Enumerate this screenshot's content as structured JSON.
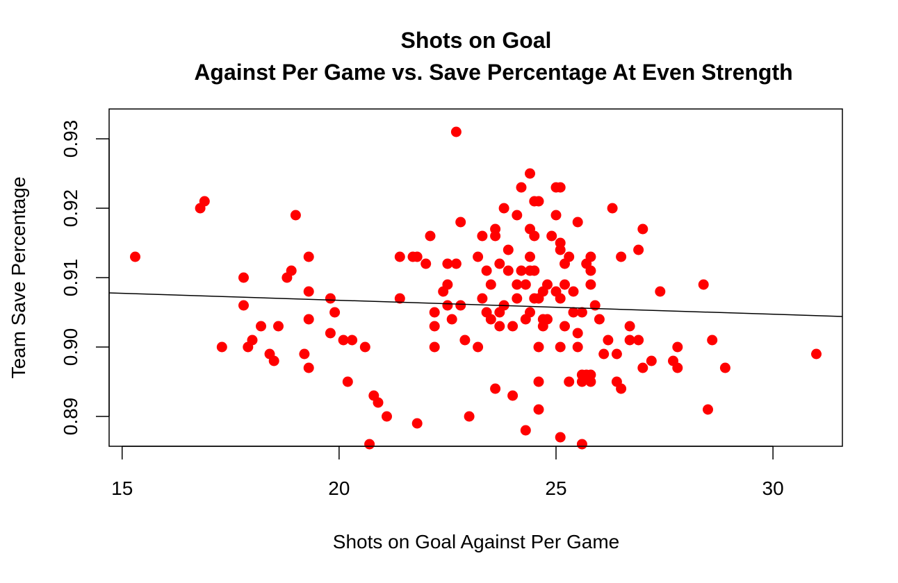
{
  "chart_data": {
    "type": "scatter",
    "title": "Shots on Goal",
    "subtitle": "Against Per Game vs. Save Percentage At Even Strength",
    "xlabel": "Shots on Goal Against Per Game",
    "ylabel": "Team Save Percentage",
    "xlim": [
      14.7,
      31.6
    ],
    "ylim": [
      0.8857,
      0.9343
    ],
    "xticks": [
      15,
      20,
      25,
      30
    ],
    "xtick_labels": [
      "15",
      "20",
      "25",
      "30"
    ],
    "yticks": [
      0.89,
      0.9,
      0.91,
      0.92,
      0.93
    ],
    "ytick_labels": [
      "0.89",
      "0.90",
      "0.91",
      "0.92",
      "0.93"
    ],
    "grid": false,
    "point_color": "#ff0000",
    "line_color": "#000000",
    "trendline": {
      "x": [
        14.7,
        31.6
      ],
      "y": [
        0.9078,
        0.9044
      ]
    },
    "points": [
      [
        15.3,
        0.913
      ],
      [
        16.8,
        0.92
      ],
      [
        16.9,
        0.921
      ],
      [
        17.3,
        0.9
      ],
      [
        17.8,
        0.91
      ],
      [
        17.8,
        0.906
      ],
      [
        17.9,
        0.9
      ],
      [
        18.0,
        0.901
      ],
      [
        18.2,
        0.903
      ],
      [
        18.4,
        0.899
      ],
      [
        18.5,
        0.898
      ],
      [
        18.6,
        0.903
      ],
      [
        18.8,
        0.91
      ],
      [
        18.9,
        0.911
      ],
      [
        19.0,
        0.919
      ],
      [
        19.2,
        0.899
      ],
      [
        19.3,
        0.897
      ],
      [
        19.3,
        0.913
      ],
      [
        19.3,
        0.908
      ],
      [
        19.3,
        0.904
      ],
      [
        19.8,
        0.907
      ],
      [
        19.8,
        0.902
      ],
      [
        19.9,
        0.905
      ],
      [
        20.1,
        0.901
      ],
      [
        20.2,
        0.895
      ],
      [
        20.3,
        0.901
      ],
      [
        20.6,
        0.9
      ],
      [
        20.7,
        0.886
      ],
      [
        20.8,
        0.893
      ],
      [
        20.9,
        0.892
      ],
      [
        21.1,
        0.89
      ],
      [
        21.4,
        0.907
      ],
      [
        21.4,
        0.913
      ],
      [
        21.7,
        0.913
      ],
      [
        21.8,
        0.913
      ],
      [
        21.8,
        0.889
      ],
      [
        22.0,
        0.912
      ],
      [
        22.1,
        0.916
      ],
      [
        22.2,
        0.905
      ],
      [
        22.2,
        0.903
      ],
      [
        22.2,
        0.9
      ],
      [
        22.4,
        0.908
      ],
      [
        22.5,
        0.912
      ],
      [
        22.5,
        0.909
      ],
      [
        22.5,
        0.906
      ],
      [
        22.6,
        0.904
      ],
      [
        22.7,
        0.931
      ],
      [
        22.7,
        0.912
      ],
      [
        22.8,
        0.918
      ],
      [
        22.8,
        0.906
      ],
      [
        22.9,
        0.901
      ],
      [
        23.0,
        0.89
      ],
      [
        23.2,
        0.9
      ],
      [
        23.2,
        0.913
      ],
      [
        23.3,
        0.916
      ],
      [
        23.3,
        0.907
      ],
      [
        23.4,
        0.911
      ],
      [
        23.4,
        0.905
      ],
      [
        23.5,
        0.904
      ],
      [
        23.5,
        0.909
      ],
      [
        23.6,
        0.917
      ],
      [
        23.6,
        0.916
      ],
      [
        23.6,
        0.894
      ],
      [
        23.7,
        0.912
      ],
      [
        23.7,
        0.905
      ],
      [
        23.7,
        0.903
      ],
      [
        23.8,
        0.92
      ],
      [
        23.8,
        0.906
      ],
      [
        23.9,
        0.914
      ],
      [
        23.9,
        0.911
      ],
      [
        24.0,
        0.903
      ],
      [
        24.0,
        0.893
      ],
      [
        24.1,
        0.919
      ],
      [
        24.1,
        0.909
      ],
      [
        24.1,
        0.907
      ],
      [
        24.2,
        0.911
      ],
      [
        24.2,
        0.923
      ],
      [
        24.3,
        0.904
      ],
      [
        24.3,
        0.909
      ],
      [
        24.3,
        0.888
      ],
      [
        24.4,
        0.925
      ],
      [
        24.4,
        0.917
      ],
      [
        24.4,
        0.911
      ],
      [
        24.4,
        0.913
      ],
      [
        24.4,
        0.905
      ],
      [
        24.5,
        0.921
      ],
      [
        24.5,
        0.916
      ],
      [
        24.5,
        0.911
      ],
      [
        24.5,
        0.907
      ],
      [
        24.6,
        0.921
      ],
      [
        24.6,
        0.907
      ],
      [
        24.6,
        0.9
      ],
      [
        24.6,
        0.895
      ],
      [
        24.6,
        0.891
      ],
      [
        24.7,
        0.908
      ],
      [
        24.7,
        0.904
      ],
      [
        24.7,
        0.903
      ],
      [
        24.8,
        0.904
      ],
      [
        24.8,
        0.909
      ],
      [
        24.9,
        0.916
      ],
      [
        25.0,
        0.923
      ],
      [
        25.0,
        0.919
      ],
      [
        25.0,
        0.908
      ],
      [
        25.1,
        0.923
      ],
      [
        25.1,
        0.915
      ],
      [
        25.1,
        0.914
      ],
      [
        25.1,
        0.907
      ],
      [
        25.1,
        0.9
      ],
      [
        25.1,
        0.887
      ],
      [
        25.2,
        0.912
      ],
      [
        25.2,
        0.909
      ],
      [
        25.2,
        0.903
      ],
      [
        25.3,
        0.913
      ],
      [
        25.3,
        0.895
      ],
      [
        25.4,
        0.908
      ],
      [
        25.4,
        0.905
      ],
      [
        25.5,
        0.918
      ],
      [
        25.5,
        0.9
      ],
      [
        25.5,
        0.902
      ],
      [
        25.6,
        0.905
      ],
      [
        25.6,
        0.896
      ],
      [
        25.6,
        0.895
      ],
      [
        25.6,
        0.886
      ],
      [
        25.7,
        0.912
      ],
      [
        25.7,
        0.896
      ],
      [
        25.8,
        0.913
      ],
      [
        25.8,
        0.911
      ],
      [
        25.8,
        0.909
      ],
      [
        25.8,
        0.896
      ],
      [
        25.8,
        0.895
      ],
      [
        25.9,
        0.906
      ],
      [
        26.0,
        0.904
      ],
      [
        26.1,
        0.899
      ],
      [
        26.2,
        0.901
      ],
      [
        26.3,
        0.92
      ],
      [
        26.4,
        0.899
      ],
      [
        26.4,
        0.895
      ],
      [
        26.5,
        0.913
      ],
      [
        26.5,
        0.894
      ],
      [
        26.7,
        0.903
      ],
      [
        26.7,
        0.901
      ],
      [
        26.9,
        0.914
      ],
      [
        26.9,
        0.901
      ],
      [
        27.0,
        0.917
      ],
      [
        27.0,
        0.897
      ],
      [
        27.2,
        0.898
      ],
      [
        27.4,
        0.908
      ],
      [
        27.7,
        0.898
      ],
      [
        27.8,
        0.9
      ],
      [
        27.8,
        0.897
      ],
      [
        28.4,
        0.909
      ],
      [
        28.5,
        0.891
      ],
      [
        28.6,
        0.901
      ],
      [
        28.9,
        0.897
      ],
      [
        31.0,
        0.899
      ]
    ]
  }
}
